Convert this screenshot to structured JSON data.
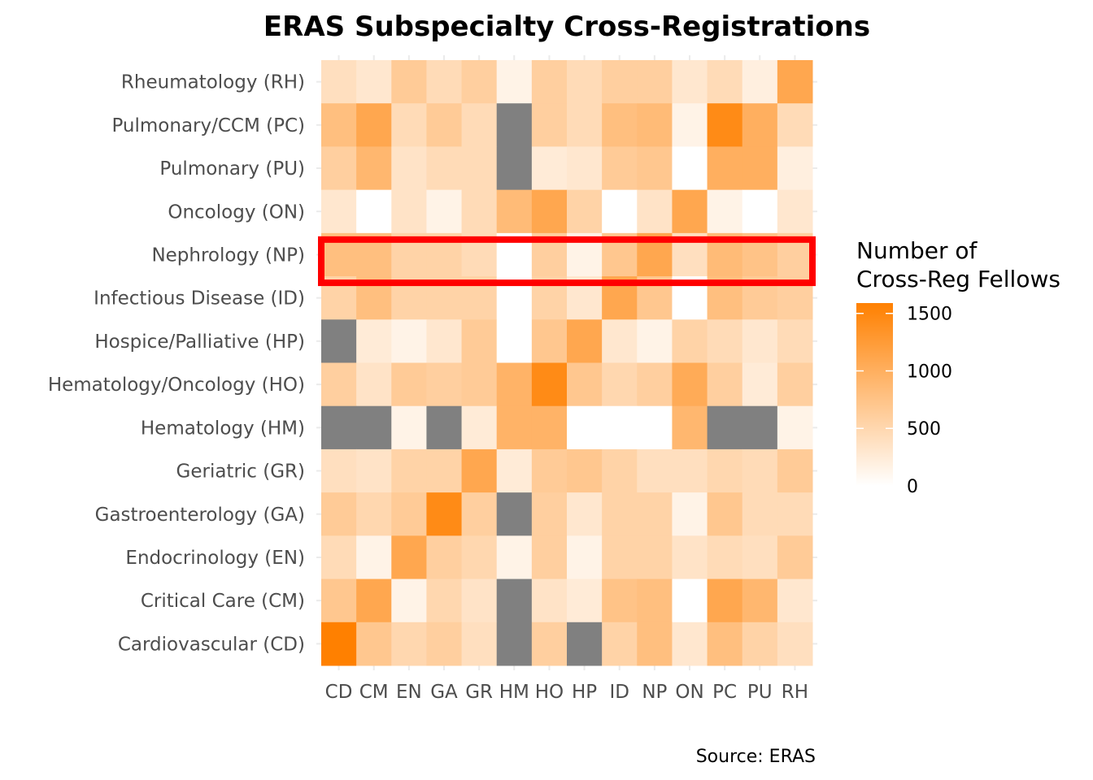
{
  "chart_data": {
    "type": "heatmap",
    "title": "ERAS Subspecialty Cross-Registrations",
    "caption": "Source: ERAS",
    "x_categories": [
      "CD",
      "CM",
      "EN",
      "GA",
      "GR",
      "HM",
      "HO",
      "HP",
      "ID",
      "NP",
      "ON",
      "PC",
      "PU",
      "RH"
    ],
    "y_categories": [
      "Rheumatology (RH)",
      "Pulmonary/CCM (PC)",
      "Pulmonary (PU)",
      "Oncology (ON)",
      "Nephrology (NP)",
      "Infectious Disease (ID)",
      "Hospice/Palliative (HP)",
      "Hematology/Oncology (HO)",
      "Hematology (HM)",
      "Geriatric (GR)",
      "Gastroenterology (GA)",
      "Endocrinology (EN)",
      "Critical Care (CM)",
      "Cardiovascular (CD)"
    ],
    "values": [
      [
        400,
        300,
        650,
        450,
        600,
        150,
        600,
        450,
        600,
        600,
        300,
        450,
        200,
        1100
      ],
      [
        800,
        1100,
        450,
        650,
        450,
        null,
        600,
        450,
        800,
        850,
        150,
        1450,
        1000,
        450
      ],
      [
        600,
        900,
        350,
        450,
        450,
        null,
        250,
        300,
        650,
        700,
        0,
        1000,
        1000,
        200
      ],
      [
        300,
        0,
        350,
        150,
        450,
        850,
        1100,
        550,
        0,
        350,
        1100,
        150,
        0,
        300
      ],
      [
        800,
        800,
        550,
        550,
        450,
        0,
        600,
        150,
        700,
        1100,
        400,
        850,
        750,
        600
      ],
      [
        550,
        800,
        550,
        550,
        550,
        0,
        550,
        300,
        1100,
        700,
        0,
        800,
        650,
        600
      ],
      [
        null,
        250,
        150,
        300,
        650,
        0,
        700,
        1100,
        300,
        150,
        550,
        450,
        300,
        450
      ],
      [
        600,
        350,
        650,
        600,
        650,
        950,
        1450,
        700,
        500,
        600,
        1050,
        600,
        250,
        600
      ],
      [
        null,
        null,
        150,
        null,
        250,
        950,
        950,
        0,
        0,
        0,
        900,
        null,
        null,
        150
      ],
      [
        400,
        350,
        550,
        550,
        1100,
        250,
        650,
        700,
        550,
        400,
        400,
        500,
        450,
        650
      ],
      [
        650,
        500,
        650,
        1450,
        600,
        null,
        600,
        300,
        550,
        550,
        150,
        700,
        450,
        450
      ],
      [
        450,
        150,
        1100,
        600,
        500,
        150,
        600,
        150,
        550,
        550,
        350,
        450,
        400,
        650
      ],
      [
        700,
        1100,
        150,
        500,
        350,
        null,
        350,
        250,
        750,
        800,
        0,
        1100,
        900,
        300
      ],
      [
        1590,
        700,
        500,
        600,
        400,
        null,
        600,
        null,
        550,
        800,
        300,
        800,
        550,
        400
      ]
    ],
    "value_range": [
      0,
      1590
    ],
    "na_color": "#808080",
    "low_color": "#FFFFFF",
    "high_color": "#FF8000",
    "highlight_row": "Nephrology (NP)",
    "highlight_color": "#FF0000",
    "legend": {
      "title_line1": "Number of",
      "title_line2": "Cross-Reg Fellows",
      "ticks": [
        1500,
        1000,
        500,
        0
      ],
      "placement": "right"
    }
  }
}
